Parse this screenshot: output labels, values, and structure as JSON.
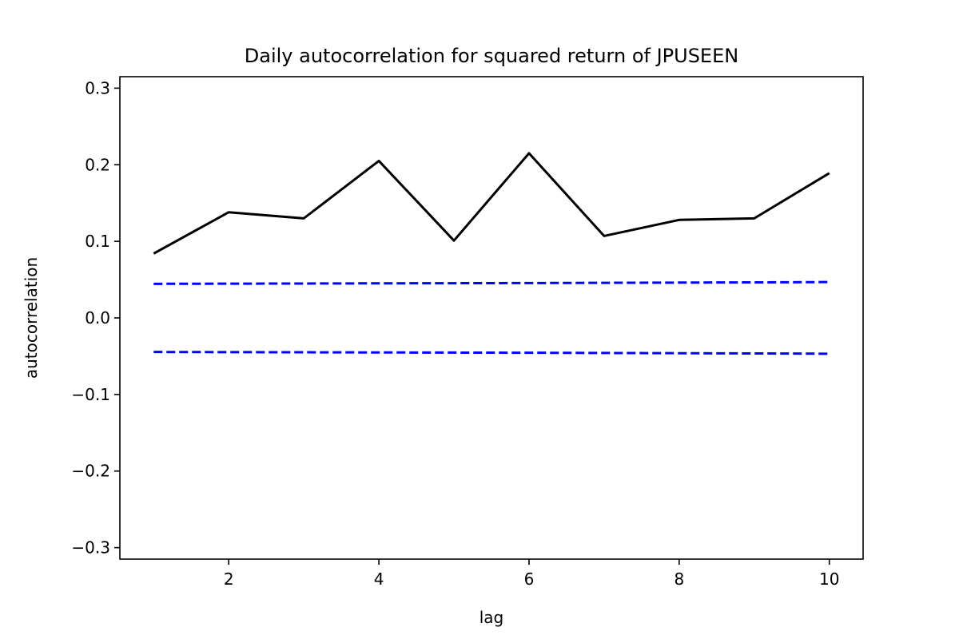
{
  "chart_data": {
    "type": "line",
    "title": "Daily autocorrelation for squared return of JPUSEEN",
    "xlabel": "lag",
    "ylabel": "autocorrelation",
    "xlim": [
      0.55,
      10.45
    ],
    "ylim": [
      -0.315,
      0.315
    ],
    "x_ticks": [
      2,
      4,
      6,
      8,
      10
    ],
    "x_tick_labels": [
      "2",
      "4",
      "6",
      "8",
      "10"
    ],
    "y_ticks": [
      -0.3,
      -0.2,
      -0.1,
      0.0,
      0.1,
      0.2,
      0.3
    ],
    "y_tick_labels": [
      "−0.3",
      "−0.2",
      "−0.1",
      "0.0",
      "0.1",
      "0.2",
      "0.3"
    ],
    "grid": false,
    "x": [
      1,
      2,
      3,
      4,
      5,
      6,
      7,
      8,
      9,
      10
    ],
    "series": [
      {
        "values": [
          0.084,
          0.138,
          0.13,
          0.205,
          0.101,
          0.215,
          0.107,
          0.128,
          0.13,
          0.189
        ],
        "color": "#000000",
        "style": "solid"
      },
      {
        "values": [
          0.0445,
          0.0447,
          0.0449,
          0.0451,
          0.0453,
          0.0455,
          0.0458,
          0.0461,
          0.0464,
          0.0468
        ],
        "color": "#0000ff",
        "style": "dashed"
      },
      {
        "values": [
          -0.0445,
          -0.0447,
          -0.0449,
          -0.0451,
          -0.0453,
          -0.0455,
          -0.0458,
          -0.0461,
          -0.0464,
          -0.0468
        ],
        "color": "#0000ff",
        "style": "dashed"
      }
    ]
  }
}
